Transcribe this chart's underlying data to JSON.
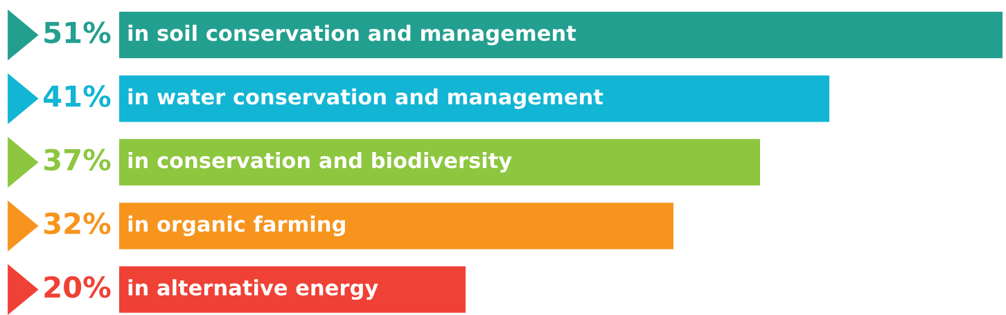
{
  "chart_data": {
    "type": "bar",
    "orientation": "horizontal",
    "categories": [
      "in soil conservation and management",
      "in water conservation and management",
      "in conservation and biodiversity",
      "in organic farming",
      "in alternative energy"
    ],
    "values": [
      51,
      41,
      37,
      32,
      20
    ],
    "value_labels": [
      "51%",
      "41%",
      "37%",
      "32%",
      "20%"
    ],
    "colors": [
      "#239f8f",
      "#13b5d4",
      "#8dc63f",
      "#f7941d",
      "#ef4136"
    ]
  }
}
